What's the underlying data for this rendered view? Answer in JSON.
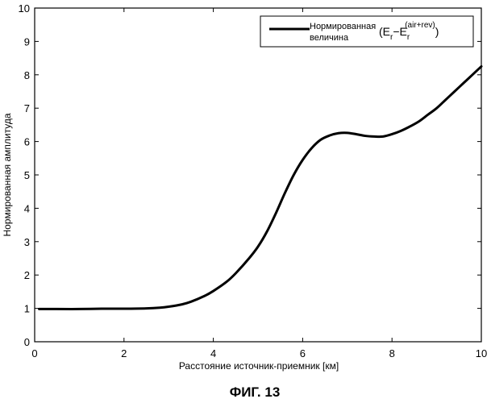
{
  "chart_data": {
    "type": "line",
    "title": "",
    "xlabel": "Расстояние источник-приемник [км]",
    "ylabel": "Нормированная амплитуда",
    "xlim": [
      0,
      10
    ],
    "ylim": [
      0,
      10
    ],
    "x_ticks": [
      "0",
      "2",
      "4",
      "6",
      "8",
      "10"
    ],
    "y_ticks": [
      "0",
      "1",
      "2",
      "3",
      "4",
      "5",
      "6",
      "7",
      "8",
      "9",
      "10"
    ],
    "grid": false,
    "legend_position": "top-right",
    "legend": {
      "name_line1": "Нормированная",
      "name_line2": "величина",
      "expr_open": "(E",
      "expr_sub1": "r",
      "expr_minus": "−E",
      "expr_sub2": "r",
      "expr_sup": "(air+rev)",
      "expr_close": ")"
    },
    "series": [
      {
        "name": "Нормированная величина (E_r − E_r^(air+rev))",
        "color": "#000000",
        "x": [
          0.1,
          0.5,
          1.0,
          1.5,
          2.0,
          2.5,
          2.8,
          3.0,
          3.3,
          3.5,
          3.8,
          4.0,
          4.3,
          4.5,
          4.8,
          5.0,
          5.2,
          5.4,
          5.6,
          5.8,
          6.0,
          6.2,
          6.4,
          6.6,
          6.8,
          7.0,
          7.2,
          7.4,
          7.6,
          7.8,
          8.0,
          8.2,
          8.4,
          8.6,
          8.8,
          9.0,
          9.2,
          9.4,
          9.6,
          9.8,
          10.0
        ],
        "y": [
          0.98,
          0.98,
          0.98,
          0.99,
          0.99,
          1.0,
          1.02,
          1.05,
          1.12,
          1.2,
          1.37,
          1.52,
          1.8,
          2.05,
          2.5,
          2.85,
          3.3,
          3.85,
          4.45,
          5.0,
          5.45,
          5.8,
          6.05,
          6.18,
          6.25,
          6.26,
          6.22,
          6.17,
          6.15,
          6.15,
          6.22,
          6.32,
          6.45,
          6.6,
          6.8,
          7.0,
          7.25,
          7.5,
          7.75,
          8.0,
          8.25
        ]
      }
    ]
  },
  "caption": "ФИГ. 13"
}
